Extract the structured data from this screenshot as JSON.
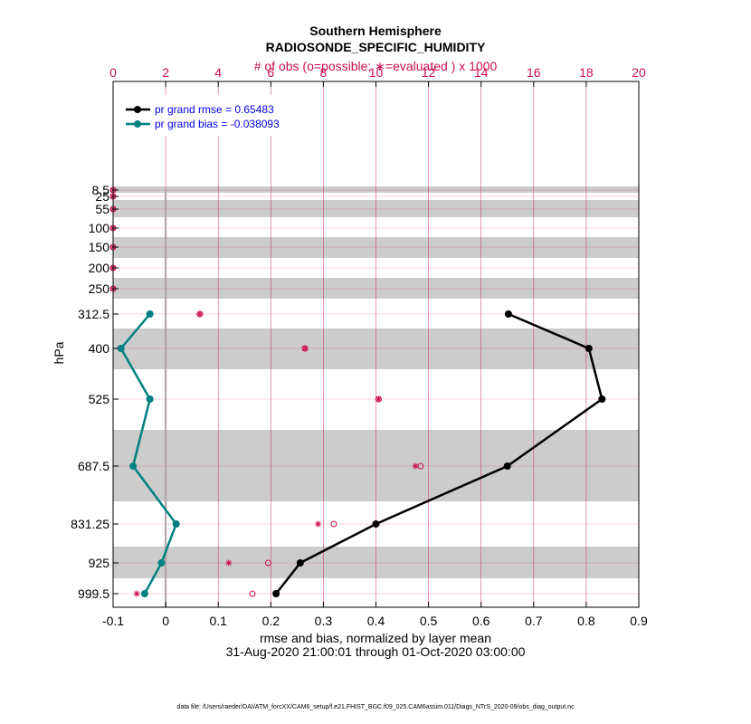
{
  "chart_data": {
    "type": "line",
    "title": "Southern Hemisphere",
    "subtitle": "RADIOSONDE_SPECIFIC_HUMIDITY",
    "top_axis_label": "# of obs (o=possible; ∗=evaluated ) x 1000",
    "xlabel": "rmse and bias, normalized by layer mean",
    "xlabel2": "31-Aug-2020 21:00:01 through 01-Oct-2020 03:00:00",
    "ylabel": "hPa",
    "footnote": "data file: /Users/raeder/DAI/ATM_forcXX/CAM6_setup/f.e21.FHIST_BGC.f09_025.CAM6assim.011/Diags_NTrS_2020-09/obs_diag_output.nc",
    "xlim": [
      -0.1,
      0.9
    ],
    "top_xlim": [
      0,
      20
    ],
    "x_ticks": [
      "-0.1",
      "0",
      "0.1",
      "0.2",
      "0.3",
      "0.4",
      "0.5",
      "0.6",
      "0.7",
      "0.8",
      "0.9"
    ],
    "top_ticks": [
      "0",
      "2",
      "4",
      "6",
      "8",
      "10",
      "12",
      "14",
      "16",
      "18",
      "20"
    ],
    "levels": [
      "8.5",
      "25",
      "55",
      "100",
      "150",
      "200",
      "250",
      "312.5",
      "400",
      "525",
      "687.5",
      "831.25",
      "925",
      "999.5"
    ],
    "series": [
      {
        "name": "rmse",
        "legend": "pr grand rmse = 0.65483",
        "color": "#000000",
        "values": [
          null,
          null,
          null,
          null,
          null,
          null,
          null,
          0.652,
          0.805,
          0.83,
          0.65,
          0.4,
          0.256,
          0.21
        ]
      },
      {
        "name": "bias",
        "legend": "pr grand bias = -0.038093",
        "color": "#008080",
        "values": [
          null,
          null,
          null,
          null,
          null,
          null,
          null,
          -0.03,
          -0.085,
          -0.03,
          -0.062,
          0.02,
          -0.008,
          -0.04
        ]
      }
    ],
    "obs_possible": [
      0,
      0,
      0,
      0,
      0,
      0,
      0,
      3.3,
      7.3,
      10.1,
      11.7,
      8.4,
      5.9,
      5.3
    ],
    "obs_evaluated": [
      0,
      0,
      0,
      0,
      0,
      0,
      0,
      3.3,
      7.3,
      10.1,
      11.5,
      7.8,
      4.4,
      0.9
    ],
    "colors": {
      "obs": "#cc0d52",
      "band": "#cccccc",
      "grid": "#cc0d52",
      "zero_line": "#b0a0a8"
    }
  }
}
